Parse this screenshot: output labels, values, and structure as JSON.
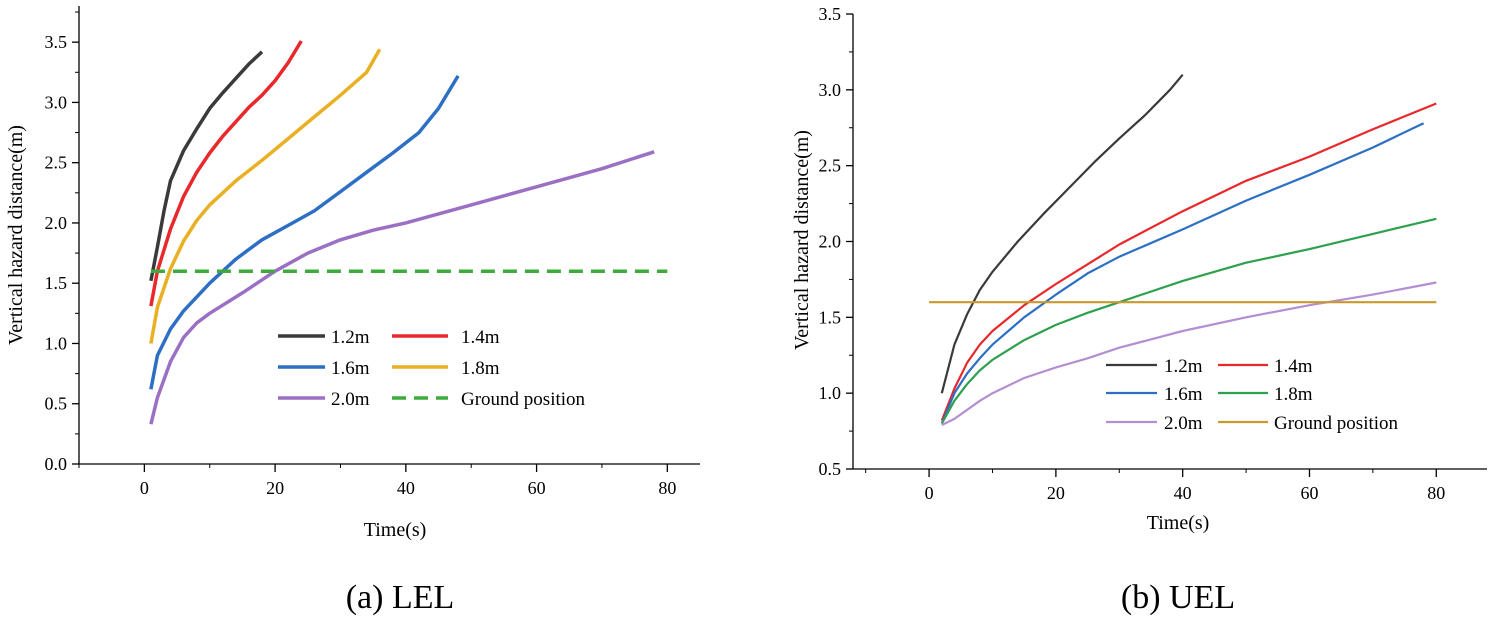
{
  "chart_data": [
    {
      "type": "line",
      "caption": "(a) LEL",
      "xlabel": "Time(s)",
      "ylabel": "Vertical hazard distance(m)",
      "xlim": [
        -10,
        85
      ],
      "ylim": [
        0,
        3.8
      ],
      "xticks": [
        0,
        20,
        40,
        60,
        80
      ],
      "xtick_labels": [
        "0",
        "20",
        "40",
        "60",
        "80"
      ],
      "yticks": [
        0,
        0.5,
        1.0,
        1.5,
        2.0,
        2.5,
        3.0,
        3.5
      ],
      "ytick_labels": [
        "0.0",
        "0.5",
        "1.0",
        "1.5",
        "2.0",
        "2.5",
        "3.0",
        "3.5"
      ],
      "legend_position": "center-right",
      "series": [
        {
          "name": "1.2m",
          "color": "#3a3a3a",
          "dash": false,
          "x": [
            1,
            2,
            3,
            4,
            6,
            8,
            10,
            12,
            14,
            16,
            18
          ],
          "y": [
            1.52,
            1.8,
            2.1,
            2.35,
            2.6,
            2.78,
            2.95,
            3.08,
            3.2,
            3.32,
            3.42
          ]
        },
        {
          "name": "1.4m",
          "color": "#e8282b",
          "dash": false,
          "x": [
            1,
            2,
            4,
            6,
            8,
            10,
            12,
            14,
            16,
            18,
            20,
            22,
            24
          ],
          "y": [
            1.31,
            1.6,
            1.95,
            2.22,
            2.42,
            2.58,
            2.72,
            2.84,
            2.96,
            3.06,
            3.18,
            3.33,
            3.51
          ]
        },
        {
          "name": "1.6m",
          "color": "#2c6fc4",
          "dash": false,
          "x": [
            1,
            2,
            4,
            6,
            10,
            14,
            18,
            22,
            26,
            30,
            34,
            38,
            42,
            45,
            48
          ],
          "y": [
            0.62,
            0.9,
            1.12,
            1.27,
            1.5,
            1.7,
            1.86,
            1.98,
            2.1,
            2.26,
            2.42,
            2.58,
            2.75,
            2.95,
            3.22
          ]
        },
        {
          "name": "1.8m",
          "color": "#e8b022",
          "dash": false,
          "x": [
            1,
            2,
            4,
            6,
            8,
            10,
            14,
            18,
            22,
            26,
            30,
            34,
            36
          ],
          "y": [
            1.0,
            1.3,
            1.62,
            1.85,
            2.02,
            2.15,
            2.35,
            2.52,
            2.7,
            2.88,
            3.06,
            3.25,
            3.44
          ]
        },
        {
          "name": "2.0m",
          "color": "#9b70c4",
          "dash": false,
          "x": [
            1,
            2,
            4,
            6,
            8,
            10,
            15,
            20,
            25,
            30,
            35,
            40,
            50,
            60,
            70,
            78
          ],
          "y": [
            0.33,
            0.55,
            0.85,
            1.05,
            1.17,
            1.25,
            1.42,
            1.6,
            1.75,
            1.86,
            1.94,
            2.0,
            2.15,
            2.3,
            2.45,
            2.59
          ]
        },
        {
          "name": "Ground position",
          "color": "#3dab3c",
          "dash": true,
          "x": [
            1,
            80
          ],
          "y": [
            1.6,
            1.6
          ]
        }
      ]
    },
    {
      "type": "line",
      "caption": "(b) UEL",
      "xlabel": "Time(s)",
      "ylabel": "Vertical hazard distance(m)",
      "xlim": [
        -12,
        88
      ],
      "ylim": [
        0.5,
        3.5
      ],
      "xticks": [
        0,
        20,
        40,
        60,
        80
      ],
      "xtick_labels": [
        "0",
        "20",
        "40",
        "60",
        "80"
      ],
      "yticks": [
        0.5,
        1.0,
        1.5,
        2.0,
        2.5,
        3.0,
        3.5
      ],
      "ytick_labels": [
        "0.5",
        "1.0",
        "1.5",
        "2.0",
        "2.5",
        "3.0",
        "3.5"
      ],
      "legend_position": "bottom-right",
      "series": [
        {
          "name": "1.2m",
          "color": "#3a3a3a",
          "dash": false,
          "x": [
            2,
            4,
            6,
            8,
            10,
            14,
            18,
            22,
            26,
            30,
            34,
            38,
            40
          ],
          "y": [
            1.0,
            1.32,
            1.52,
            1.68,
            1.8,
            2.0,
            2.18,
            2.35,
            2.52,
            2.68,
            2.83,
            3.0,
            3.1
          ]
        },
        {
          "name": "1.4m",
          "color": "#e8282b",
          "dash": false,
          "x": [
            2,
            4,
            6,
            8,
            10,
            15,
            20,
            25,
            30,
            40,
            50,
            60,
            70,
            80
          ],
          "y": [
            0.82,
            1.03,
            1.2,
            1.32,
            1.41,
            1.58,
            1.72,
            1.85,
            1.98,
            2.2,
            2.4,
            2.56,
            2.74,
            2.91
          ]
        },
        {
          "name": "1.6m",
          "color": "#2c6fc4",
          "dash": false,
          "x": [
            2,
            4,
            6,
            8,
            10,
            15,
            20,
            25,
            30,
            40,
            50,
            60,
            70,
            78
          ],
          "y": [
            0.8,
            1.0,
            1.13,
            1.23,
            1.32,
            1.5,
            1.65,
            1.79,
            1.9,
            2.08,
            2.27,
            2.44,
            2.62,
            2.78
          ]
        },
        {
          "name": "1.8m",
          "color": "#2fa04e",
          "dash": false,
          "x": [
            2,
            4,
            6,
            8,
            10,
            15,
            20,
            25,
            30,
            40,
            50,
            60,
            70,
            80
          ],
          "y": [
            0.8,
            0.95,
            1.06,
            1.15,
            1.22,
            1.35,
            1.45,
            1.53,
            1.6,
            1.74,
            1.86,
            1.95,
            2.05,
            2.15
          ]
        },
        {
          "name": "2.0m",
          "color": "#b48ed2",
          "dash": false,
          "x": [
            2,
            4,
            6,
            8,
            10,
            15,
            20,
            25,
            30,
            40,
            50,
            60,
            70,
            80
          ],
          "y": [
            0.79,
            0.83,
            0.89,
            0.95,
            1.0,
            1.1,
            1.17,
            1.23,
            1.3,
            1.41,
            1.5,
            1.58,
            1.65,
            1.73
          ]
        },
        {
          "name": "Ground position",
          "color": "#c89a2e",
          "dash": false,
          "x": [
            0,
            80
          ],
          "y": [
            1.6,
            1.6
          ]
        }
      ]
    }
  ]
}
